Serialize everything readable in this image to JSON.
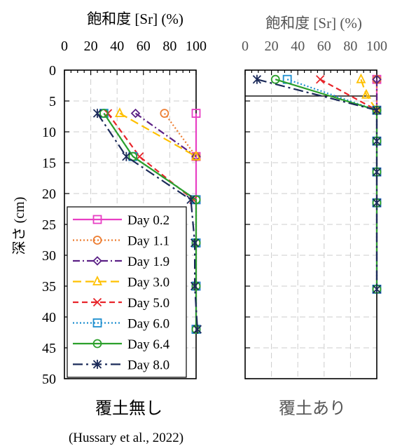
{
  "figure": {
    "ylabel": "深さ (cm)",
    "citation": "(Hussary et al., 2022)"
  },
  "chart_data": [
    {
      "type": "line",
      "title": "飽和度 [Sr] (%)",
      "subtitle": "覆土無し",
      "x_axis": "top",
      "xlim": [
        0,
        100
      ],
      "xticks": [
        0,
        20,
        40,
        60,
        80,
        100
      ],
      "ylim": [
        50,
        0
      ],
      "yticks": [
        0,
        5,
        10,
        15,
        20,
        25,
        30,
        35,
        40,
        45,
        50
      ],
      "ylabel": "深さ (cm)",
      "grid": true,
      "legend": "bottom-left",
      "series": [
        {
          "name": "Day 0.2",
          "color": "#e83fc4",
          "dash": "solid",
          "marker": "square",
          "points": [
            [
              100,
              7
            ],
            [
              100,
              14
            ],
            [
              100,
              21
            ],
            [
              100,
              28
            ],
            [
              100,
              35
            ],
            [
              100,
              42
            ]
          ]
        },
        {
          "name": "Day 1.1",
          "color": "#ed7d31",
          "dash": "dot",
          "marker": "circle",
          "points": [
            [
              76,
              7
            ],
            [
              100,
              14
            ]
          ]
        },
        {
          "name": "Day 1.9",
          "color": "#5b2085",
          "dash": "dashdot",
          "marker": "diamond",
          "points": [
            [
              54,
              7
            ],
            [
              100,
              14
            ]
          ]
        },
        {
          "name": "Day 3.0",
          "color": "#ffc000",
          "dash": "longdash",
          "marker": "triangle",
          "points": [
            [
              42,
              7
            ],
            [
              100,
              14
            ]
          ]
        },
        {
          "name": "Day 5.0",
          "color": "#e8242a",
          "dash": "dash",
          "marker": "x",
          "points": [
            [
              33,
              7
            ],
            [
              57,
              14
            ],
            [
              98,
              21
            ]
          ]
        },
        {
          "name": "Day 6.0",
          "color": "#1f8fcf",
          "dash": "dot",
          "marker": "square",
          "points": [
            [
              30,
              7
            ],
            [
              52,
              14
            ],
            [
              100,
              21
            ],
            [
              100,
              28
            ],
            [
              100,
              35
            ],
            [
              100,
              42
            ]
          ]
        },
        {
          "name": "Day 6.4",
          "color": "#2ca02c",
          "dash": "solid",
          "marker": "circle",
          "points": [
            [
              30,
              7
            ],
            [
              52,
              14
            ],
            [
              100,
              21
            ],
            [
              100,
              28
            ],
            [
              100,
              35
            ],
            [
              100,
              42
            ]
          ]
        },
        {
          "name": "Day 8.0",
          "color": "#1b2a59",
          "dash": "longdashdot",
          "marker": "asterisk",
          "points": [
            [
              25,
              7
            ],
            [
              47,
              14
            ],
            [
              96,
              21
            ],
            [
              99,
              28
            ],
            [
              99,
              35
            ],
            [
              101,
              42
            ]
          ]
        }
      ]
    },
    {
      "type": "line",
      "title": "飽和度 [Sr] (%)",
      "subtitle": "覆土あり",
      "x_axis": "top",
      "xlim": [
        0,
        100
      ],
      "xticks": [
        0,
        20,
        40,
        60,
        80,
        100
      ],
      "ylim": [
        50,
        0
      ],
      "grid": true,
      "cover_line": [
        [
          0,
          4.2
        ],
        [
          100,
          4.2
        ]
      ],
      "series": [
        {
          "name": "Day 0.2",
          "color": "#e83fc4",
          "dash": "solid",
          "marker": "square",
          "points": [
            [
              100,
              1.5
            ],
            [
              100,
              6.5
            ],
            [
              100,
              11.5
            ],
            [
              100,
              16.5
            ],
            [
              100,
              21.5
            ],
            [
              100,
              35.5
            ]
          ]
        },
        {
          "name": "Day 1.1",
          "color": "#ed7d31",
          "dash": "dot",
          "marker": "circle",
          "points": [
            [
              100,
              1.5
            ],
            [
              100,
              6.5
            ]
          ]
        },
        {
          "name": "Day 1.9",
          "color": "#5b2085",
          "dash": "dashdot",
          "marker": "diamond",
          "points": [
            [
              100,
              1.5
            ],
            [
              100,
              6.5
            ]
          ]
        },
        {
          "name": "Day 3.0",
          "color": "#ffc000",
          "dash": "longdash",
          "marker": "triangle",
          "points": [
            [
              88,
              1.5
            ],
            [
              92,
              4
            ],
            [
              100,
              6.5
            ]
          ]
        },
        {
          "name": "Day 5.0",
          "color": "#e8242a",
          "dash": "dash",
          "marker": "x",
          "points": [
            [
              57,
              1.5
            ],
            [
              100,
              6.5
            ]
          ]
        },
        {
          "name": "Day 6.0",
          "color": "#1f8fcf",
          "dash": "dot",
          "marker": "square",
          "points": [
            [
              32,
              1.5
            ],
            [
              100,
              6.5
            ],
            [
              100,
              11.5
            ],
            [
              100,
              16.5
            ],
            [
              100,
              21.5
            ],
            [
              100,
              35.5
            ]
          ]
        },
        {
          "name": "Day 6.4",
          "color": "#2ca02c",
          "dash": "solid",
          "marker": "circle",
          "points": [
            [
              23,
              1.5
            ],
            [
              100,
              6.5
            ],
            [
              100,
              11.5
            ],
            [
              100,
              16.5
            ],
            [
              100,
              21.5
            ],
            [
              100,
              35.5
            ]
          ]
        },
        {
          "name": "Day 8.0",
          "color": "#1b2a59",
          "dash": "longdashdot",
          "marker": "asterisk",
          "points": [
            [
              9,
              1.5
            ],
            [
              100,
              6.5
            ],
            [
              100,
              11.5
            ],
            [
              100,
              16.5
            ],
            [
              100,
              21.5
            ],
            [
              100,
              35.5
            ]
          ]
        }
      ]
    }
  ]
}
